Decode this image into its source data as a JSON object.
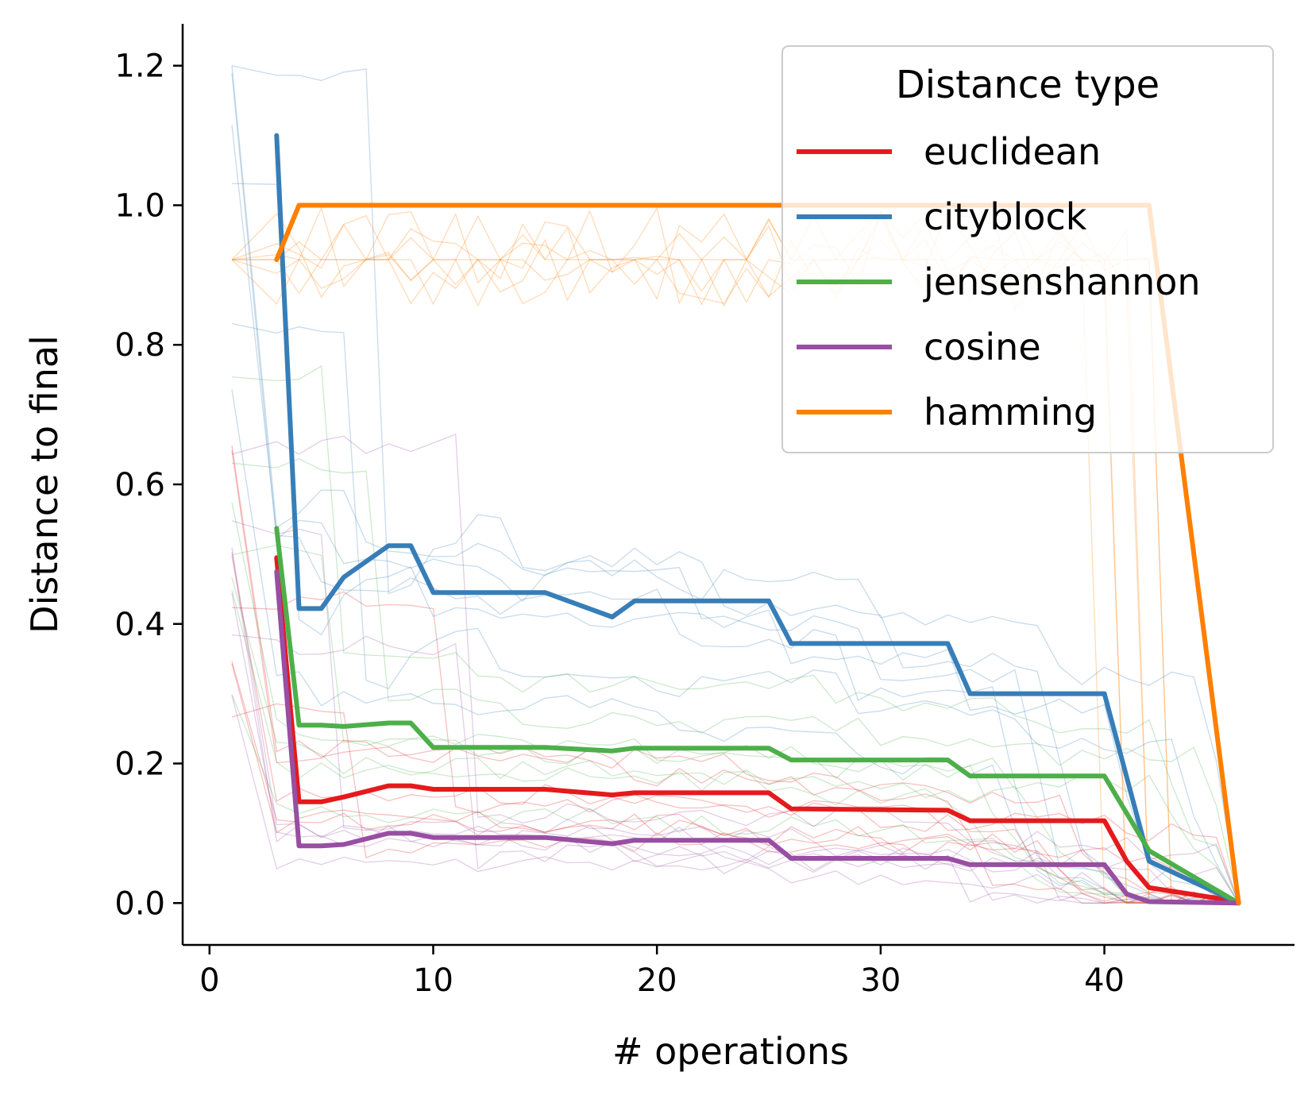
{
  "chart_data": {
    "type": "line",
    "xlabel": "# operations",
    "ylabel": "Distance to final",
    "xlim": [
      -1.2,
      48.5
    ],
    "ylim": [
      -0.06,
      1.26
    ],
    "xticks": [
      0,
      10,
      20,
      30,
      40
    ],
    "yticks": [
      0.0,
      0.2,
      0.4,
      0.6,
      0.8,
      1.0,
      1.2
    ],
    "ytick_labels": [
      "0.0",
      "0.2",
      "0.4",
      "0.6",
      "0.8",
      "1.0",
      "1.2"
    ],
    "grid": false,
    "legend": {
      "title": "Distance type",
      "placement": "top-right"
    },
    "series": [
      {
        "name": "euclidean",
        "color": "#e41a1c",
        "x": [
          3,
          4,
          5,
          6,
          7,
          8,
          9,
          10,
          15,
          18,
          19,
          25,
          26,
          33,
          34,
          40,
          41,
          42,
          46
        ],
        "y": [
          0.495,
          0.145,
          0.145,
          0.152,
          0.16,
          0.168,
          0.168,
          0.163,
          0.163,
          0.155,
          0.158,
          0.158,
          0.135,
          0.133,
          0.118,
          0.118,
          0.06,
          0.022,
          0.002
        ]
      },
      {
        "name": "cityblock",
        "color": "#377eb8",
        "x": [
          3,
          4,
          5,
          6,
          8,
          9,
          10,
          15,
          18,
          19,
          25,
          26,
          33,
          34,
          40,
          42,
          46
        ],
        "y": [
          1.1,
          0.422,
          0.422,
          0.467,
          0.512,
          0.512,
          0.445,
          0.445,
          0.41,
          0.433,
          0.433,
          0.372,
          0.372,
          0.3,
          0.3,
          0.06,
          0.0
        ]
      },
      {
        "name": "jensenshannon",
        "color": "#4daf4a",
        "x": [
          3,
          4,
          5,
          6,
          8,
          9,
          10,
          15,
          18,
          19,
          25,
          26,
          33,
          34,
          40,
          42,
          46
        ],
        "y": [
          0.537,
          0.255,
          0.255,
          0.253,
          0.258,
          0.258,
          0.223,
          0.223,
          0.218,
          0.222,
          0.222,
          0.205,
          0.205,
          0.182,
          0.182,
          0.075,
          0.0
        ]
      },
      {
        "name": "cosine",
        "color": "#984ea3",
        "x": [
          3,
          4,
          5,
          6,
          8,
          9,
          10,
          15,
          18,
          19,
          25,
          26,
          33,
          34,
          40,
          41,
          42,
          46
        ],
        "y": [
          0.475,
          0.082,
          0.082,
          0.084,
          0.1,
          0.1,
          0.094,
          0.094,
          0.085,
          0.09,
          0.09,
          0.064,
          0.064,
          0.055,
          0.055,
          0.013,
          0.002,
          0.0
        ]
      },
      {
        "name": "hamming",
        "color": "#ff7f00",
        "x": [
          3,
          4,
          42,
          46
        ],
        "y": [
          0.922,
          1.0,
          1.0,
          0.0
        ]
      }
    ]
  }
}
